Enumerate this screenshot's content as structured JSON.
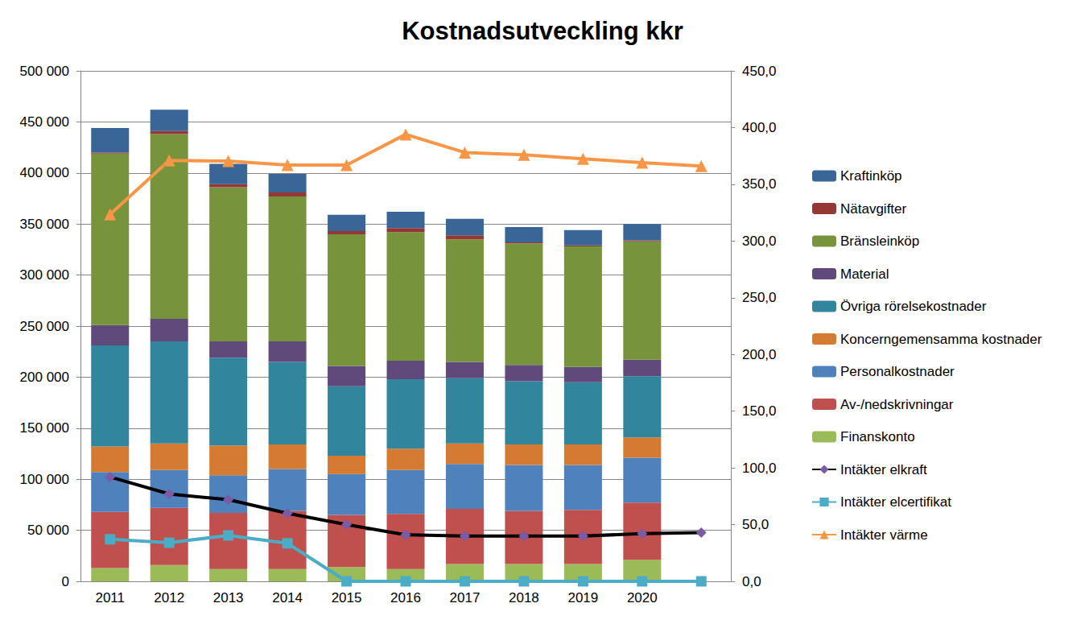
{
  "chart_data": {
    "type": "bar",
    "title": "Kostnadsutveckling kkr",
    "stacked": true,
    "grid": true,
    "legend": "right",
    "categories": [
      "2011",
      "2012",
      "2013",
      "2014",
      "2015",
      "2016",
      "2017",
      "2018",
      "2019",
      "2020",
      null
    ],
    "ylim": [
      0,
      500000
    ],
    "yticks": [
      0,
      {
        "value": 50000,
        "label": "50 000"
      },
      {
        "value": 100000,
        "label": "100 000"
      },
      {
        "value": 150000,
        "label": "150 000"
      },
      {
        "value": 200000,
        "label": "200 000"
      },
      {
        "value": 250000,
        "label": "250 000"
      },
      {
        "value": 300000,
        "label": "300 000"
      },
      {
        "value": 350000,
        "label": "350 000"
      },
      {
        "value": 400000,
        "label": "400 000"
      },
      {
        "value": 450000,
        "label": "450 000"
      },
      {
        "value": 500000,
        "label": "500 000"
      }
    ],
    "y2lim": [
      0,
      450
    ],
    "y2ticks": [
      {
        "value": 0,
        "label": "0,0"
      },
      {
        "value": 50,
        "label": "50,0"
      },
      {
        "value": 100,
        "label": "100,0"
      },
      {
        "value": 150,
        "label": "150,0"
      },
      {
        "value": 200,
        "label": "200,0"
      },
      {
        "value": 250,
        "label": "250,0"
      },
      {
        "value": 300,
        "label": "300,0"
      },
      {
        "value": 350,
        "label": "350,0"
      },
      {
        "value": 400,
        "label": "400,0"
      },
      {
        "value": 450,
        "label": "450,0"
      }
    ],
    "series": [
      {
        "name": "Kraftinköp",
        "type": "bar",
        "color": "#3a6697",
        "values": [
          24000,
          21000,
          20000,
          18000,
          16000,
          16000,
          16000,
          15000,
          15000,
          16000,
          null
        ]
      },
      {
        "name": "Nätavgifter",
        "type": "bar",
        "color": "#953735",
        "values": [
          1000,
          3000,
          3000,
          4000,
          3000,
          4000,
          4000,
          1000,
          1000,
          1000,
          null
        ]
      },
      {
        "name": "Bränsleinköp",
        "type": "bar",
        "color": "#77933c",
        "values": [
          168000,
          181000,
          151000,
          142000,
          129000,
          126000,
          120000,
          119000,
          118000,
          116000,
          null
        ]
      },
      {
        "name": "Material",
        "type": "bar",
        "color": "#604a7b",
        "values": [
          20000,
          22000,
          16000,
          20000,
          20000,
          18000,
          16000,
          16000,
          15000,
          16000,
          null
        ]
      },
      {
        "name": "Övriga rörelsekostnader",
        "type": "bar",
        "color": "#31859c",
        "values": [
          99000,
          100000,
          86000,
          81000,
          68000,
          68000,
          64000,
          62000,
          61000,
          60000,
          null
        ]
      },
      {
        "name": "Koncerngemensamma kostnader",
        "type": "bar",
        "color": "#d47a33",
        "values": [
          25000,
          26000,
          29000,
          24000,
          18000,
          21000,
          20000,
          20000,
          20000,
          20000,
          null
        ]
      },
      {
        "name": "Personalkostnader",
        "type": "bar",
        "color": "#4f81bd",
        "values": [
          39000,
          37000,
          37000,
          41000,
          40000,
          43000,
          44000,
          45000,
          44000,
          44000,
          null
        ]
      },
      {
        "name": "Av-/nedskrivningar",
        "type": "bar",
        "color": "#c0504d",
        "values": [
          55000,
          56000,
          55000,
          57000,
          51000,
          54000,
          54000,
          52000,
          53000,
          56000,
          null
        ]
      },
      {
        "name": "Finanskonto",
        "type": "bar",
        "color": "#9bbb59",
        "values": [
          13000,
          16000,
          12000,
          12000,
          14000,
          12000,
          17000,
          17000,
          17000,
          21000,
          null
        ]
      },
      {
        "name": "Intäkter elkraft",
        "type": "line",
        "axis": "y2",
        "color": "#000000",
        "marker": "diamond",
        "line_style": "solid",
        "values": [
          92,
          77,
          72,
          60,
          50,
          41,
          40,
          40,
          40,
          42,
          43
        ]
      },
      {
        "name": "Intäkter elcertifikat",
        "type": "line",
        "axis": "y2",
        "color": "#4bacc6",
        "marker": "square",
        "line_style": "solid",
        "values": [
          37,
          34,
          40.5,
          33.5,
          0,
          0,
          0,
          0,
          0,
          0,
          0
        ]
      },
      {
        "name": "Intäkter värme",
        "type": "line",
        "axis": "y2",
        "color": "#f79646",
        "marker": "triangle",
        "line_style": "solid",
        "values": [
          323.5,
          371,
          370.5,
          367,
          367,
          394,
          378,
          376,
          372.5,
          369,
          366
        ]
      }
    ]
  }
}
